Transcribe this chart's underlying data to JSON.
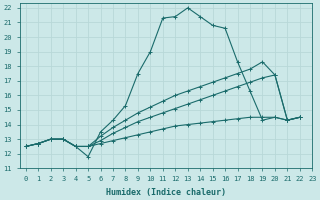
{
  "xlabel": "Humidex (Indice chaleur)",
  "xlim": [
    -0.5,
    23
  ],
  "ylim": [
    11,
    22.3
  ],
  "yticks": [
    11,
    12,
    13,
    14,
    15,
    16,
    17,
    18,
    19,
    20,
    21,
    22
  ],
  "xticks": [
    0,
    1,
    2,
    3,
    4,
    5,
    6,
    7,
    8,
    9,
    10,
    11,
    12,
    13,
    14,
    15,
    16,
    17,
    18,
    19,
    20,
    21,
    22,
    23
  ],
  "bg_color": "#cce8e8",
  "line_color": "#1a6b6b",
  "grid_color": "#b8d8d8",
  "curves": [
    {
      "x": [
        0,
        1,
        2,
        3,
        4,
        5,
        6,
        7,
        8,
        9,
        10,
        11,
        12,
        13,
        14,
        15,
        16,
        17,
        18,
        19,
        20,
        21,
        22
      ],
      "y": [
        12.5,
        12.7,
        13.0,
        13.0,
        12.5,
        11.8,
        13.5,
        14.3,
        15.3,
        17.5,
        19.0,
        21.3,
        21.4,
        22.0,
        21.4,
        20.8,
        20.6,
        18.3,
        16.3,
        14.3,
        14.5,
        14.3,
        14.5
      ]
    },
    {
      "x": [
        0,
        1,
        2,
        3,
        4,
        5,
        6,
        7,
        8,
        9,
        10,
        11,
        12,
        13,
        14,
        15,
        16,
        17,
        18,
        19,
        20,
        21,
        22
      ],
      "y": [
        12.5,
        12.7,
        13.0,
        13.0,
        12.5,
        12.5,
        13.2,
        13.8,
        14.3,
        14.8,
        15.2,
        15.6,
        16.0,
        16.3,
        16.6,
        16.9,
        17.2,
        17.5,
        17.8,
        18.3,
        17.4,
        14.3,
        14.5
      ]
    },
    {
      "x": [
        0,
        1,
        2,
        3,
        4,
        5,
        6,
        7,
        8,
        9,
        10,
        11,
        12,
        13,
        14,
        15,
        16,
        17,
        18,
        19,
        20,
        21,
        22
      ],
      "y": [
        12.5,
        12.7,
        13.0,
        13.0,
        12.5,
        12.5,
        12.9,
        13.4,
        13.8,
        14.2,
        14.5,
        14.8,
        15.1,
        15.4,
        15.7,
        16.0,
        16.3,
        16.6,
        16.9,
        17.2,
        17.4,
        14.3,
        14.5
      ]
    },
    {
      "x": [
        0,
        1,
        2,
        3,
        4,
        5,
        6,
        7,
        8,
        9,
        10,
        11,
        12,
        13,
        14,
        15,
        16,
        17,
        18,
        19,
        20,
        21,
        22
      ],
      "y": [
        12.5,
        12.7,
        13.0,
        13.0,
        12.5,
        12.5,
        12.7,
        12.9,
        13.1,
        13.3,
        13.5,
        13.7,
        13.9,
        14.0,
        14.1,
        14.2,
        14.3,
        14.4,
        14.5,
        14.5,
        14.5,
        14.3,
        14.5
      ]
    }
  ]
}
